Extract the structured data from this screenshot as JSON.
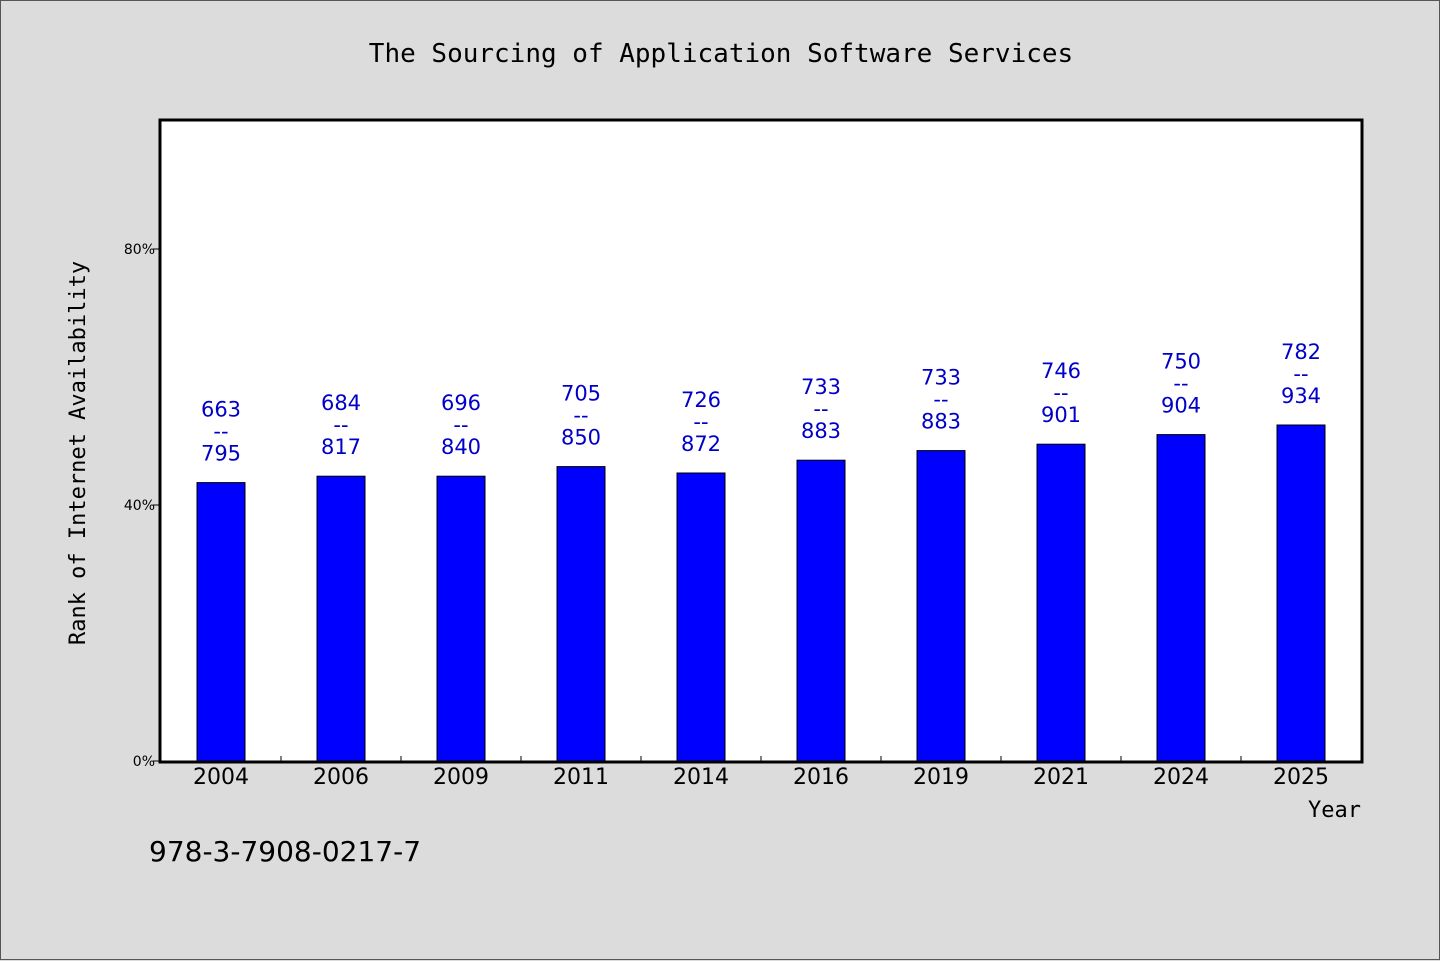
{
  "footnote": "978-3-7908-0217-7",
  "chart_data": {
    "type": "bar",
    "title": "The Sourcing of Application Software Services",
    "xlabel": "Year",
    "ylabel": "Rank of Internet Availability",
    "ylim": [
      0,
      100
    ],
    "yticks": [
      0,
      40,
      80
    ],
    "ytick_labels": [
      "0%",
      "40%",
      "80%"
    ],
    "grid": false,
    "categories": [
      "2004",
      "2006",
      "2009",
      "2011",
      "2014",
      "2016",
      "2019",
      "2021",
      "2024",
      "2025"
    ],
    "values": [
      43.5,
      44.5,
      44.5,
      46,
      45,
      47,
      48.5,
      49.5,
      51,
      52.5
    ],
    "labels": [
      [
        "663",
        "--",
        "795"
      ],
      [
        "684",
        "--",
        "817"
      ],
      [
        "696",
        "--",
        "840"
      ],
      [
        "705",
        "--",
        "850"
      ],
      [
        "726",
        "--",
        "872"
      ],
      [
        "733",
        "--",
        "883"
      ],
      [
        "733",
        "--",
        "883"
      ],
      [
        "746",
        "--",
        "901"
      ],
      [
        "750",
        "--",
        "904"
      ],
      [
        "782",
        "--",
        "934"
      ]
    ],
    "colors": {
      "bar": "#0000ff",
      "label": "#0000c8",
      "plot_bg": "#ffffff",
      "page_bg": "#dcdcdc"
    }
  }
}
